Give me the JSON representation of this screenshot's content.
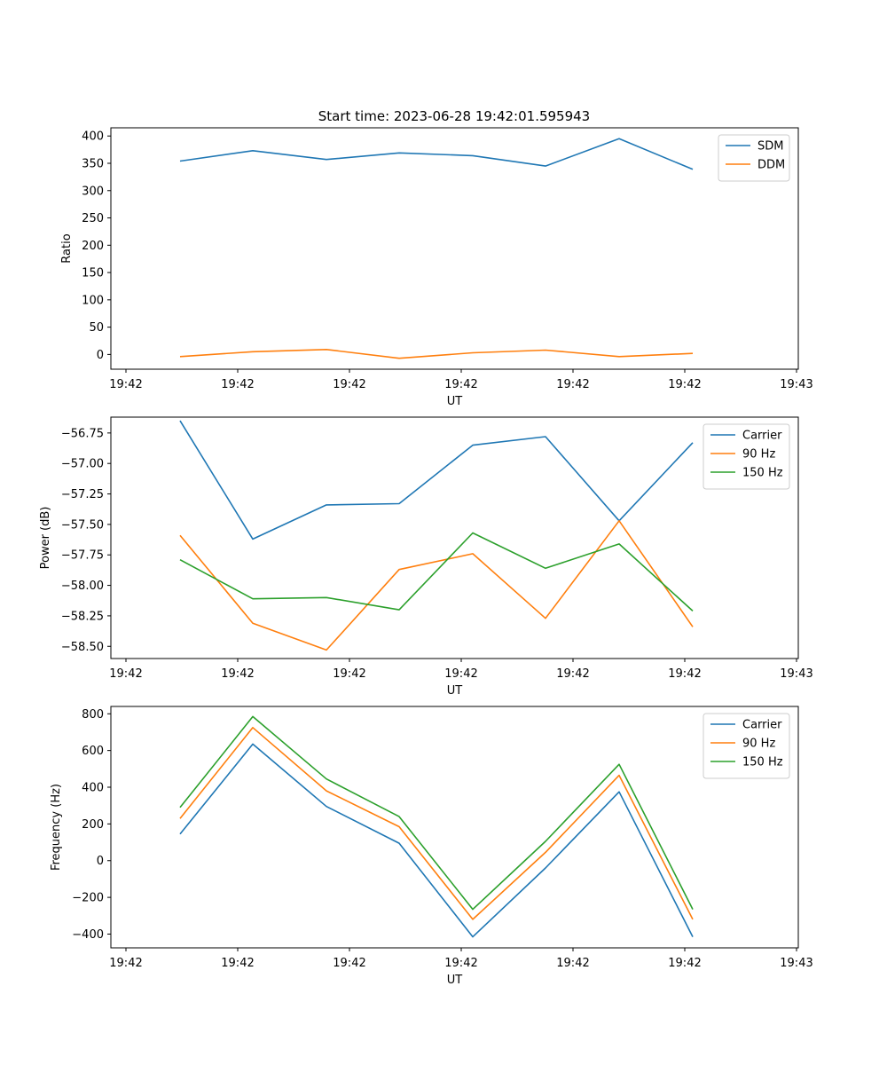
{
  "figure": {
    "title": "Start time: 2023-06-28 19:42:01.595943"
  },
  "chart_data": [
    {
      "type": "line",
      "xlabel": "UT",
      "ylabel": "Ratio",
      "x_ticks": [
        "19:42",
        "19:42",
        "19:42",
        "19:42",
        "19:42",
        "19:42",
        "19:43"
      ],
      "y_ticks": [
        "0",
        "50",
        "100",
        "150",
        "200",
        "250",
        "300",
        "350",
        "400"
      ],
      "ylim": [
        -27,
        415
      ],
      "legend_position": "upper-right",
      "series": [
        {
          "name": "SDM",
          "color": "#1f77b4",
          "values": [
            354,
            373,
            357,
            369,
            364,
            345,
            395,
            339
          ]
        },
        {
          "name": "DDM",
          "color": "#ff7f0e",
          "values": [
            -4,
            5,
            9,
            -7,
            3,
            8,
            -4,
            2
          ]
        }
      ]
    },
    {
      "type": "line",
      "xlabel": "UT",
      "ylabel": "Power (dB)",
      "x_ticks": [
        "19:42",
        "19:42",
        "19:42",
        "19:42",
        "19:42",
        "19:42",
        "19:43"
      ],
      "y_ticks": [
        "−58.50",
        "−58.25",
        "−58.00",
        "−57.75",
        "−57.50",
        "−57.25",
        "−57.00",
        "−56.75"
      ],
      "ylim": [
        -58.6,
        -56.62
      ],
      "legend_position": "upper-right",
      "series": [
        {
          "name": "Carrier",
          "color": "#1f77b4",
          "values": [
            -56.65,
            -57.62,
            -57.34,
            -57.33,
            -56.85,
            -56.78,
            -57.47,
            -56.83
          ]
        },
        {
          "name": "90 Hz",
          "color": "#ff7f0e",
          "values": [
            -57.59,
            -58.31,
            -58.53,
            -57.87,
            -57.74,
            -58.27,
            -57.47,
            -58.34
          ]
        },
        {
          "name": "150 Hz",
          "color": "#2ca02c",
          "values": [
            -57.79,
            -58.11,
            -58.1,
            -58.2,
            -57.57,
            -57.86,
            -57.66,
            -58.21
          ]
        }
      ]
    },
    {
      "type": "line",
      "xlabel": "UT",
      "ylabel": "Frequency (Hz)",
      "x_ticks": [
        "19:42",
        "19:42",
        "19:42",
        "19:42",
        "19:42",
        "19:42",
        "19:43"
      ],
      "y_ticks": [
        "−400",
        "−200",
        "0",
        "200",
        "400",
        "600",
        "800"
      ],
      "ylim": [
        -475,
        840
      ],
      "legend_position": "upper-right",
      "series": [
        {
          "name": "Carrier",
          "color": "#1f77b4",
          "values": [
            145,
            635,
            295,
            95,
            -415,
            -40,
            375,
            -415
          ]
        },
        {
          "name": "90 Hz",
          "color": "#ff7f0e",
          "values": [
            230,
            725,
            380,
            185,
            -320,
            45,
            465,
            -320
          ]
        },
        {
          "name": "150 Hz",
          "color": "#2ca02c",
          "values": [
            290,
            785,
            445,
            240,
            -265,
            105,
            525,
            -265
          ]
        }
      ]
    }
  ]
}
